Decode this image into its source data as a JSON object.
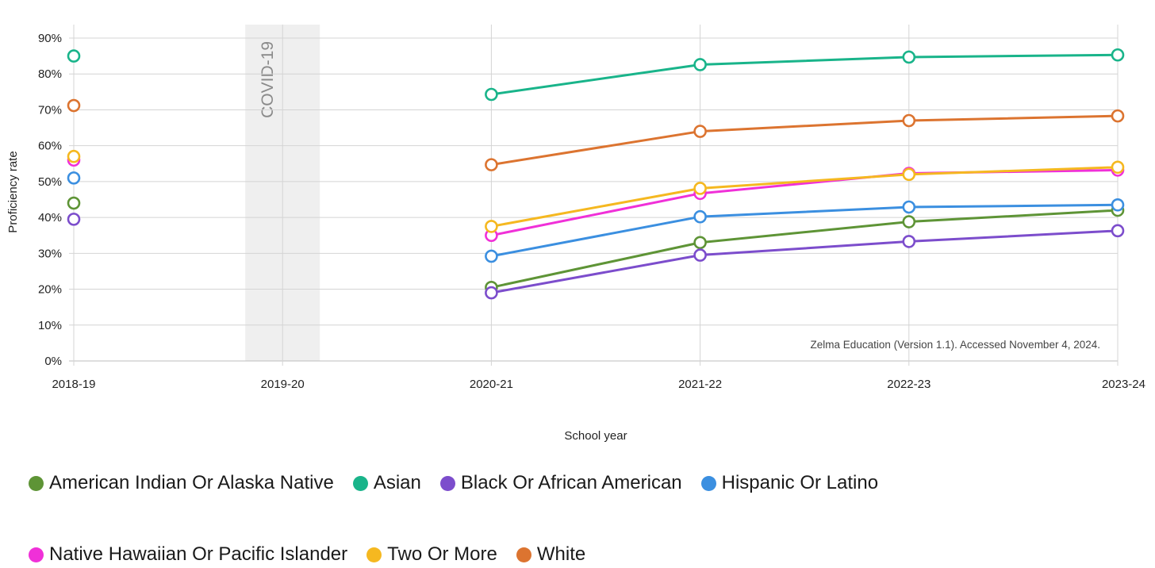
{
  "chart_data": {
    "type": "line",
    "categories": [
      "2018-19",
      "2019-20",
      "2020-21",
      "2021-22",
      "2022-23",
      "2023-24"
    ],
    "ylabel": "Proficiency rate",
    "xlabel": "School year",
    "ylim": [
      0,
      90
    ],
    "yticks": [
      "0%",
      "10%",
      "20%",
      "30%",
      "40%",
      "50%",
      "60%",
      "70%",
      "80%",
      "90%"
    ],
    "grid": true,
    "legend_position": "bottom",
    "annotation": {
      "label": "COVID-19",
      "category": "2019-20"
    },
    "source_note": "Zelma Education (Version 1.1). Accessed November 4, 2024.",
    "series": [
      {
        "name": "American Indian Or Alaska Native",
        "color": "#5e9436",
        "values": [
          44,
          null,
          20.5,
          33,
          38.8,
          42
        ]
      },
      {
        "name": "Asian",
        "color": "#19b48a",
        "values": [
          85,
          null,
          74.3,
          82.6,
          84.7,
          85.3
        ]
      },
      {
        "name": "Black Or African American",
        "color": "#7c4dcc",
        "values": [
          39.5,
          null,
          19,
          29.5,
          33.3,
          36.3
        ]
      },
      {
        "name": "Hispanic Or Latino",
        "color": "#3b8fe0",
        "values": [
          51,
          null,
          29.2,
          40.2,
          42.9,
          43.5
        ]
      },
      {
        "name": "Native Hawaiian Or Pacific Islander",
        "color": "#f030d8",
        "values": [
          56,
          null,
          35,
          46.7,
          52.3,
          53.2
        ]
      },
      {
        "name": "Two Or More",
        "color": "#f5b820",
        "values": [
          57,
          null,
          37.5,
          48.1,
          52,
          54
        ]
      },
      {
        "name": "White",
        "color": "#dc7430",
        "values": [
          71.2,
          null,
          54.7,
          64,
          67,
          68.3
        ]
      }
    ]
  }
}
